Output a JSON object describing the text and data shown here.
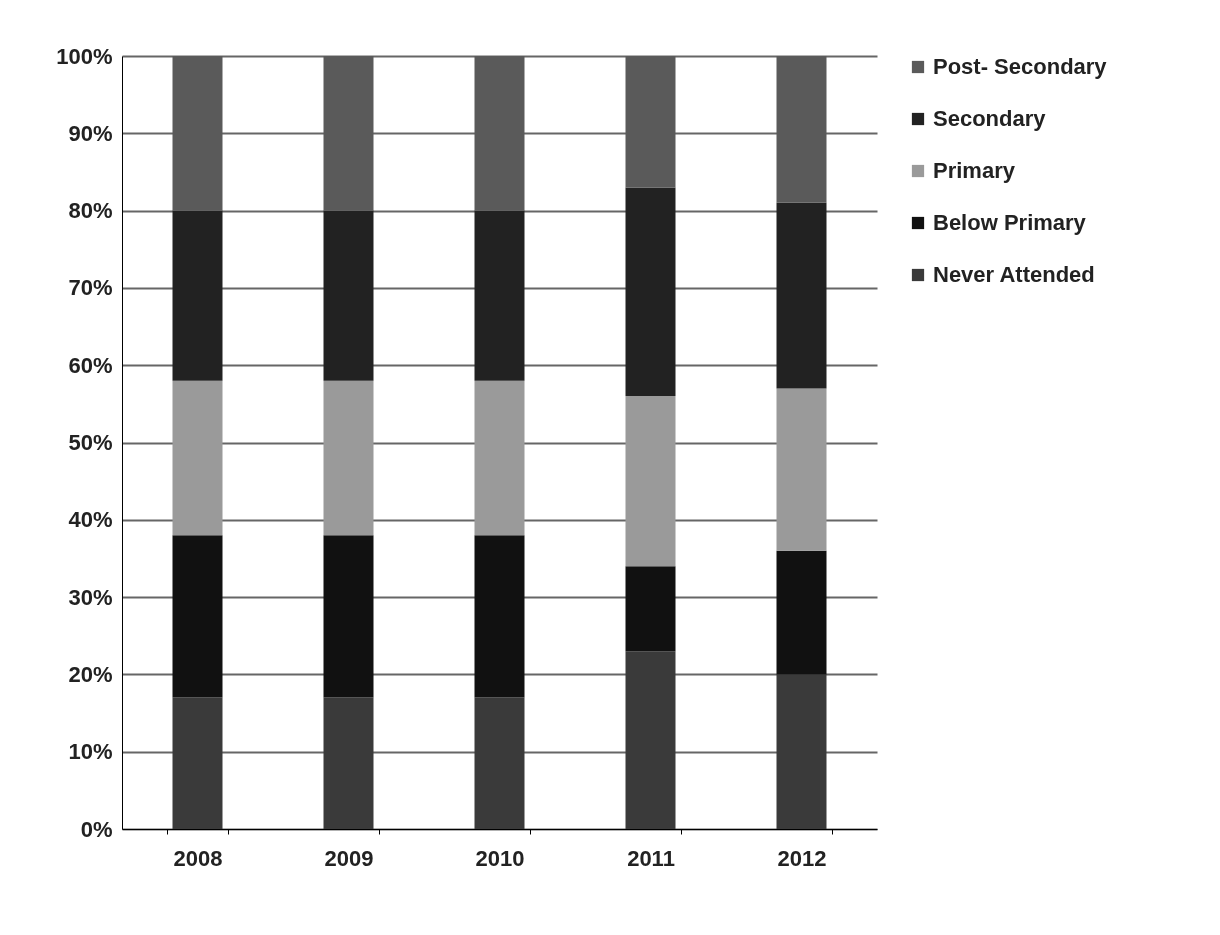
{
  "chart_data": {
    "type": "bar",
    "stacked": true,
    "categories": [
      "2008",
      "2009",
      "2010",
      "2011",
      "2012"
    ],
    "series": [
      {
        "name": "Never Attended",
        "color": "#3a3a3a",
        "values": [
          17,
          17,
          17,
          23,
          20
        ]
      },
      {
        "name": "Below Primary",
        "color": "#111111",
        "values": [
          21,
          21,
          21,
          11,
          16
        ]
      },
      {
        "name": "Primary",
        "color": "#9a9a9a",
        "values": [
          20,
          20,
          20,
          22,
          21
        ]
      },
      {
        "name": "Secondary",
        "color": "#222222",
        "values": [
          22,
          22,
          22,
          27,
          24
        ]
      },
      {
        "name": "Post- Secondary",
        "color": "#5a5a5a",
        "values": [
          20,
          20,
          20,
          17,
          19
        ]
      }
    ],
    "ylim": [
      0,
      100
    ],
    "yticks": [
      {
        "value": 0,
        "label": "0%"
      },
      {
        "value": 10,
        "label": "10%"
      },
      {
        "value": 20,
        "label": "20%"
      },
      {
        "value": 30,
        "label": "30%"
      },
      {
        "value": 40,
        "label": "40%"
      },
      {
        "value": 50,
        "label": "50%"
      },
      {
        "value": 60,
        "label": "60%"
      },
      {
        "value": 70,
        "label": "70%"
      },
      {
        "value": 80,
        "label": "80%"
      },
      {
        "value": 90,
        "label": "90%"
      },
      {
        "value": 100,
        "label": "100%"
      }
    ],
    "grid": "y",
    "legend": "right"
  }
}
